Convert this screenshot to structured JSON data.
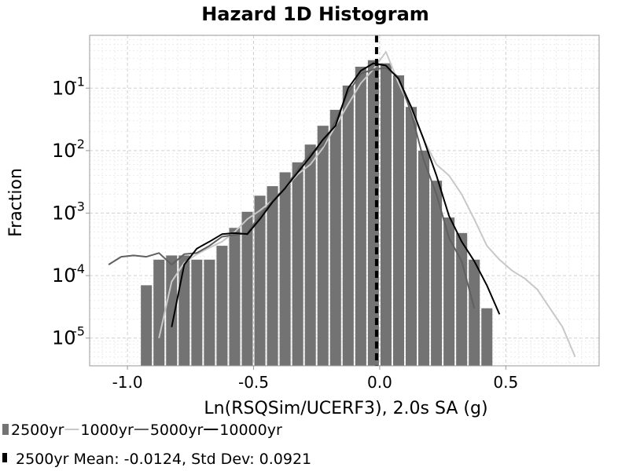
{
  "chart_data": {
    "type": "bar",
    "title": "Hazard 1D Histogram",
    "xlabel": "Ln(RSQSim/UCERF3), 2.0s SA (g)",
    "ylabel": "Fraction",
    "xlim": [
      -1.15,
      0.87
    ],
    "ylim": [
      3.6e-06,
      0.7
    ],
    "yscale": "log",
    "grid": true,
    "legend_placement": "bottom",
    "x_ticks": [
      {
        "value": -1.0,
        "label": "-1.0"
      },
      {
        "value": -0.5,
        "label": "-0.5"
      },
      {
        "value": 0.0,
        "label": "0.0"
      },
      {
        "value": 0.5,
        "label": "0.5"
      }
    ],
    "y_ticks": [
      {
        "value": 1e-05,
        "base": "10",
        "exp": "-5"
      },
      {
        "value": 0.0001,
        "base": "10",
        "exp": "-4"
      },
      {
        "value": 0.001,
        "base": "10",
        "exp": "-3"
      },
      {
        "value": 0.01,
        "base": "10",
        "exp": "-2"
      },
      {
        "value": 0.1,
        "base": "10",
        "exp": "-1"
      }
    ],
    "histogram": {
      "name": "2500yr",
      "color": "#737373",
      "bin_width": 0.05,
      "bin_centers": [
        -0.925,
        -0.875,
        -0.825,
        -0.775,
        -0.725,
        -0.675,
        -0.625,
        -0.575,
        -0.525,
        -0.475,
        -0.425,
        -0.375,
        -0.325,
        -0.275,
        -0.225,
        -0.175,
        -0.125,
        -0.075,
        -0.025,
        0.025,
        0.075,
        0.125,
        0.175,
        0.225,
        0.275,
        0.325,
        0.375,
        0.425
      ],
      "values": [
        7e-05,
        0.00018,
        0.00021,
        0.00021,
        0.00018,
        0.00018,
        0.0003,
        0.00058,
        0.00105,
        0.0019,
        0.0027,
        0.0045,
        0.0065,
        0.0125,
        0.025,
        0.045,
        0.11,
        0.22,
        0.28,
        0.25,
        0.16,
        0.05,
        0.01,
        0.0033,
        0.00085,
        0.00048,
        0.00018,
        3e-05
      ]
    },
    "series": [
      {
        "name": "1000yr",
        "color": "#c8c8c8",
        "x": [
          -0.875,
          -0.825,
          -0.775,
          -0.725,
          -0.675,
          -0.625,
          -0.575,
          -0.525,
          -0.475,
          -0.425,
          -0.375,
          -0.325,
          -0.275,
          -0.225,
          -0.175,
          -0.125,
          -0.075,
          -0.025,
          0.025,
          0.075,
          0.125,
          0.175,
          0.225,
          0.275,
          0.325,
          0.375,
          0.425,
          0.475,
          0.525,
          0.575,
          0.625,
          0.675,
          0.725,
          0.775
        ],
        "y": [
          1e-05,
          8e-05,
          0.00016,
          0.00022,
          0.00028,
          0.00035,
          0.0005,
          0.0008,
          0.0011,
          0.0016,
          0.0025,
          0.0042,
          0.006,
          0.011,
          0.025,
          0.055,
          0.12,
          0.2,
          0.38,
          0.12,
          0.045,
          0.015,
          0.006,
          0.004,
          0.002,
          0.0008,
          0.0003,
          0.00018,
          0.00012,
          9e-05,
          6e-05,
          3e-05,
          1.5e-05,
          5e-06
        ]
      },
      {
        "name": "5000yr",
        "color": "#606060",
        "x": [
          -1.075,
          -1.025,
          -0.975,
          -0.925,
          -0.875,
          -0.825,
          -0.775,
          -0.725,
          -0.675,
          -0.625,
          -0.575,
          -0.525,
          -0.475,
          -0.425,
          -0.375,
          -0.325,
          -0.275,
          -0.225,
          -0.175,
          -0.125,
          -0.075,
          -0.025,
          0.025,
          0.075,
          0.125,
          0.175,
          0.225,
          0.275,
          0.325,
          0.375
        ],
        "y": [
          0.00015,
          0.0002,
          0.00021,
          0.0002,
          0.00023,
          0.00015,
          0.00022,
          0.00023,
          0.0003,
          0.00042,
          0.00045,
          0.00048,
          0.0009,
          0.0016,
          0.0025,
          0.005,
          0.009,
          0.012,
          0.03,
          0.085,
          0.17,
          0.2,
          0.21,
          0.15,
          0.04,
          0.007,
          0.002,
          0.0004,
          0.00017,
          3e-05
        ]
      },
      {
        "name": "10000yr",
        "color": "#000000",
        "x": [
          -0.825,
          -0.775,
          -0.725,
          -0.675,
          -0.625,
          -0.575,
          -0.525,
          -0.475,
          -0.425,
          -0.375,
          -0.325,
          -0.275,
          -0.225,
          -0.175,
          -0.125,
          -0.075,
          -0.025,
          0.025,
          0.075,
          0.125,
          0.175,
          0.225,
          0.275,
          0.325,
          0.375,
          0.425,
          0.475
        ],
        "y": [
          1.5e-05,
          0.00015,
          0.00027,
          0.00035,
          0.00046,
          0.00048,
          0.00046,
          0.0008,
          0.0015,
          0.0025,
          0.0045,
          0.008,
          0.015,
          0.025,
          0.1,
          0.19,
          0.25,
          0.23,
          0.14,
          0.05,
          0.015,
          0.004,
          0.0009,
          0.00035,
          0.00017,
          7e-05,
          2.4e-05
        ]
      }
    ],
    "mean_line": {
      "x": -0.0124,
      "label": "2500yr Mean: -0.0124, Std Dev: 0.0921",
      "color": "#000000"
    },
    "legend": [
      "2500yr",
      "1000yr",
      "5000yr",
      "10000yr"
    ]
  }
}
